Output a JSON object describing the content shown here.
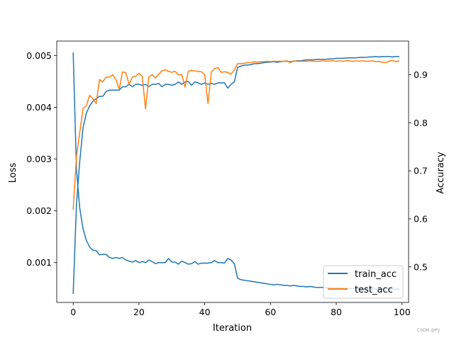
{
  "chart_data": {
    "type": "line",
    "xlabel": "Iteration",
    "ylabel_left": "Loss",
    "ylabel_right": "Accuracy",
    "xlim": [
      -5,
      102
    ],
    "ylim_left": [
      0.00023,
      0.00528
    ],
    "ylim_right": [
      0.426,
      0.97
    ],
    "x_ticks": [
      0,
      20,
      40,
      60,
      80,
      100
    ],
    "y_ticks_left": [
      0.001,
      0.002,
      0.003,
      0.004,
      0.005
    ],
    "y_ticks_left_labels": [
      "0.001",
      "0.002",
      "0.003",
      "0.004",
      "0.005"
    ],
    "y_ticks_right": [
      0.5,
      0.6,
      0.7,
      0.8,
      0.9
    ],
    "y_ticks_right_labels": [
      "0.5",
      "0.6",
      "0.7",
      "0.8",
      "0.9"
    ],
    "grid": false,
    "legend_position": "lower right",
    "legend": [
      "train_acc",
      "test_acc"
    ],
    "watermark": "CSDN @Py",
    "colors": {
      "blue": "#1f77b4",
      "orange": "#ff7f0e"
    },
    "series": [
      {
        "axis": "left",
        "color": "#1f77b4",
        "x": [
          0,
          1,
          2,
          3,
          4,
          5,
          6,
          7,
          8,
          9,
          10,
          11,
          12,
          13,
          14,
          15,
          16,
          17,
          18,
          19,
          20,
          21,
          22,
          23,
          24,
          25,
          26,
          27,
          28,
          29,
          30,
          31,
          32,
          33,
          34,
          35,
          36,
          37,
          38,
          39,
          40,
          41,
          42,
          43,
          44,
          45,
          46,
          47,
          48,
          49,
          50,
          51,
          52,
          53,
          54,
          55,
          56,
          57,
          58,
          59,
          60,
          61,
          62,
          63,
          64,
          65,
          66,
          67,
          68,
          69,
          70,
          71,
          72,
          73,
          74,
          75,
          76,
          77,
          78,
          79,
          80,
          81,
          82,
          83,
          84,
          85,
          86,
          87,
          88,
          89,
          90,
          91,
          92,
          93,
          94,
          95,
          96,
          97,
          98,
          99
        ],
        "values": [
          0.00505,
          0.0028,
          0.00205,
          0.00165,
          0.00143,
          0.0013,
          0.00124,
          0.00123,
          0.00115,
          0.00116,
          0.00116,
          0.0011,
          0.00108,
          0.0011,
          0.00108,
          0.0011,
          0.00105,
          0.00103,
          0.00101,
          0.00104,
          0.001,
          0.00102,
          0.001,
          0.00105,
          0.00102,
          0.00098,
          0.001,
          0.001,
          0.001,
          0.00108,
          0.00101,
          0.00101,
          0.00097,
          0.00103,
          0.001,
          0.00097,
          0.00098,
          0.00102,
          0.00097,
          0.00099,
          0.00099,
          0.00099,
          0.001,
          0.00104,
          0.001,
          0.001,
          0.00099,
          0.00108,
          0.00105,
          0.00098,
          0.0007,
          0.00067,
          0.00066,
          0.00065,
          0.00064,
          0.00063,
          0.00062,
          0.00061,
          0.0006,
          0.00059,
          0.00058,
          0.00057,
          0.00058,
          0.00057,
          0.00056,
          0.00056,
          0.00055,
          0.00056,
          0.00055,
          0.00054,
          0.00054,
          0.00053,
          0.00054,
          0.00053,
          0.00052,
          0.00052,
          0.00052,
          0.00051,
          0.00052,
          0.00051,
          0.00051,
          0.00051,
          0.0005,
          0.0005,
          0.0005,
          0.0005,
          0.0005,
          0.0005,
          0.0005,
          0.00049,
          0.00049,
          0.00049,
          0.00049,
          0.00049,
          0.00049,
          0.00049,
          0.00049,
          0.00049,
          0.00049,
          0.00049
        ]
      },
      {
        "axis": "right",
        "name": "train_acc",
        "color": "#1f77b4",
        "x": [
          0,
          1,
          2,
          3,
          4,
          5,
          6,
          7,
          8,
          9,
          10,
          11,
          12,
          13,
          14,
          15,
          16,
          17,
          18,
          19,
          20,
          21,
          22,
          23,
          24,
          25,
          26,
          27,
          28,
          29,
          30,
          31,
          32,
          33,
          34,
          35,
          36,
          37,
          38,
          39,
          40,
          41,
          42,
          43,
          44,
          45,
          46,
          47,
          48,
          49,
          50,
          51,
          52,
          53,
          54,
          55,
          56,
          57,
          58,
          59,
          60,
          61,
          62,
          63,
          64,
          65,
          66,
          67,
          68,
          69,
          70,
          71,
          72,
          73,
          74,
          75,
          76,
          77,
          78,
          79,
          80,
          81,
          82,
          83,
          84,
          85,
          86,
          87,
          88,
          89,
          90,
          91,
          92,
          93,
          94,
          95,
          96,
          97,
          98,
          99
        ],
        "values": [
          0.445,
          0.63,
          0.72,
          0.79,
          0.82,
          0.835,
          0.845,
          0.85,
          0.855,
          0.855,
          0.865,
          0.868,
          0.868,
          0.868,
          0.868,
          0.875,
          0.875,
          0.88,
          0.875,
          0.88,
          0.88,
          0.878,
          0.88,
          0.875,
          0.88,
          0.88,
          0.882,
          0.875,
          0.88,
          0.88,
          0.878,
          0.88,
          0.885,
          0.88,
          0.885,
          0.886,
          0.878,
          0.885,
          0.883,
          0.88,
          0.883,
          0.88,
          0.882,
          0.88,
          0.883,
          0.883,
          0.883,
          0.872,
          0.88,
          0.885,
          0.915,
          0.918,
          0.92,
          0.92,
          0.921,
          0.923,
          0.923,
          0.924,
          0.925,
          0.926,
          0.926,
          0.927,
          0.926,
          0.927,
          0.928,
          0.928,
          0.927,
          0.928,
          0.929,
          0.929,
          0.93,
          0.931,
          0.931,
          0.931,
          0.932,
          0.932,
          0.932,
          0.932,
          0.933,
          0.933,
          0.934,
          0.934,
          0.934,
          0.935,
          0.935,
          0.935,
          0.935,
          0.936,
          0.936,
          0.936,
          0.937,
          0.937,
          0.938,
          0.937,
          0.938,
          0.938,
          0.938,
          0.937,
          0.938,
          0.938
        ]
      },
      {
        "axis": "right",
        "name": "test_acc",
        "color": "#ff7f0e",
        "x": [
          0,
          1,
          2,
          3,
          4,
          5,
          6,
          7,
          8,
          9,
          10,
          11,
          12,
          13,
          14,
          15,
          16,
          17,
          18,
          19,
          20,
          21,
          22,
          23,
          24,
          25,
          26,
          27,
          28,
          29,
          30,
          31,
          32,
          33,
          34,
          35,
          36,
          37,
          38,
          39,
          40,
          41,
          42,
          43,
          44,
          45,
          46,
          47,
          48,
          49,
          50,
          51,
          52,
          53,
          54,
          55,
          56,
          57,
          58,
          59,
          60,
          61,
          62,
          63,
          64,
          65,
          66,
          67,
          68,
          69,
          70,
          71,
          72,
          73,
          74,
          75,
          76,
          77,
          78,
          79,
          80,
          81,
          82,
          83,
          84,
          85,
          86,
          87,
          88,
          89,
          90,
          91,
          92,
          93,
          94,
          95,
          96,
          97,
          98,
          99
        ],
        "values": [
          0.62,
          0.73,
          0.78,
          0.83,
          0.835,
          0.857,
          0.85,
          0.84,
          0.89,
          0.885,
          0.895,
          0.895,
          0.9,
          0.89,
          0.87,
          0.906,
          0.904,
          0.88,
          0.895,
          0.897,
          0.903,
          0.897,
          0.829,
          0.895,
          0.9,
          0.893,
          0.901,
          0.908,
          0.91,
          0.907,
          0.905,
          0.907,
          0.9,
          0.9,
          0.874,
          0.907,
          0.909,
          0.908,
          0.907,
          0.906,
          0.9,
          0.84,
          0.905,
          0.913,
          0.915,
          0.905,
          0.906,
          0.905,
          0.901,
          0.91,
          0.923,
          0.923,
          0.924,
          0.925,
          0.925,
          0.927,
          0.926,
          0.927,
          0.927,
          0.928,
          0.927,
          0.928,
          0.928,
          0.928,
          0.928,
          0.929,
          0.925,
          0.929,
          0.928,
          0.928,
          0.928,
          0.928,
          0.929,
          0.928,
          0.928,
          0.928,
          0.929,
          0.928,
          0.929,
          0.929,
          0.928,
          0.929,
          0.928,
          0.929,
          0.929,
          0.928,
          0.929,
          0.928,
          0.929,
          0.928,
          0.928,
          0.929,
          0.927,
          0.928,
          0.926,
          0.925,
          0.928,
          0.93,
          0.927,
          0.929
        ]
      }
    ]
  }
}
